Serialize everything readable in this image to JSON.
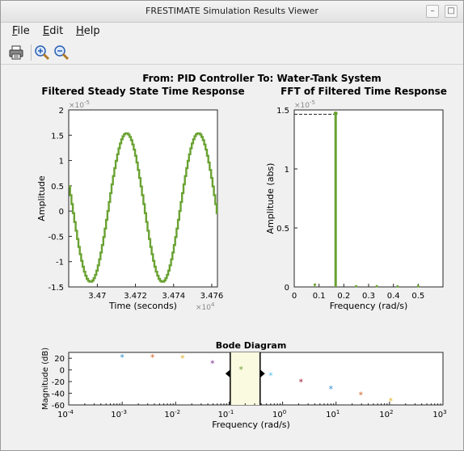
{
  "window": {
    "title": "FRESTIMATE Simulation Results Viewer",
    "btn_min": "–",
    "btn_max": "□",
    "btn_close": "✕"
  },
  "menu": {
    "file": "File",
    "file_key": "F",
    "file_rest": "ile",
    "edit": "Edit",
    "edit_key": "E",
    "edit_rest": "dit",
    "help": "Help",
    "help_key": "H",
    "help_rest": "elp"
  },
  "toolbar": {
    "print_icon": "printer-icon",
    "zoom_in_icon": "zoom-in-icon",
    "zoom_out_icon": "zoom-out-icon"
  },
  "figure": {
    "super_title": "From: PID Controller  To: Water-Tank System"
  },
  "colors": {
    "line_green": "#6aa232",
    "highlight": "#fafae0"
  },
  "chart_data": [
    {
      "type": "line",
      "title": "Filtered Steady State Time Response",
      "xlabel": "Time (seconds)",
      "ylabel": "Amplitude",
      "y_exponent": "×10",
      "y_exponent_power": "-5",
      "x_exponent": "×10",
      "x_exponent_power": "4",
      "xlim": [
        34685,
        34763
      ],
      "ylim": [
        -1.5e-05,
        2e-05
      ],
      "x_ticks": [
        34700,
        34720,
        34740,
        34760
      ],
      "x_tick_labels": [
        "3.47",
        "3.472",
        "3.474",
        "3.476"
      ],
      "y_ticks": [
        -1.5e-05,
        -1e-05,
        -5e-06,
        0,
        5e-06,
        1e-05,
        1.5e-05,
        2e-05
      ],
      "y_tick_labels": [
        "-1.5",
        "-1",
        "-0.5",
        "0",
        "0.5",
        "1",
        "1.5",
        "2"
      ],
      "signal": {
        "amplitude": 1.47e-05,
        "offset": 7e-07,
        "period": 37.7,
        "peak_time": 34715,
        "steps_per_period": 52
      }
    },
    {
      "type": "bar",
      "title": "FFT of Filtered Time Response",
      "xlabel": "Frequency (rad/s)",
      "ylabel": "Amplitude (abs)",
      "y_exponent": "×10",
      "y_exponent_power": "-5",
      "xlim": [
        0,
        0.6
      ],
      "ylim": [
        0,
        1.5e-05
      ],
      "x_ticks": [
        0,
        0.1,
        0.2,
        0.3,
        0.4,
        0.5
      ],
      "x_tick_labels": [
        "0",
        "0.1",
        "0.2",
        "0.3",
        "0.4",
        "0.5"
      ],
      "y_ticks": [
        0,
        5e-06,
        1e-05,
        1.5e-05
      ],
      "y_tick_labels": [
        "0",
        "0.5",
        "1",
        "1.5"
      ],
      "x": [
        0.083,
        0.167,
        0.25,
        0.333,
        0.417,
        0.5
      ],
      "values": [
        2e-07,
        1.47e-05,
        6e-08,
        6e-08,
        4e-08,
        6e-08
      ]
    },
    {
      "type": "scatter",
      "title": "Bode Diagram",
      "xlabel": "Frequency  (rad/s)",
      "ylabel": "Magnitude (dB)",
      "xscale": "log",
      "xlim": [
        0.0001,
        1000
      ],
      "ylim": [
        -60,
        30
      ],
      "x_ticks": [
        0.0001,
        0.001,
        0.01,
        0.1,
        1,
        10,
        100,
        1000
      ],
      "x_tick_bases": [
        "10",
        "10",
        "10",
        "10",
        "10",
        "10",
        "10",
        "10"
      ],
      "x_tick_powers": [
        "-4",
        "-3",
        "-2",
        "-1",
        "0",
        "1",
        "2",
        "3"
      ],
      "y_ticks": [
        -60,
        -40,
        -20,
        0,
        20
      ],
      "y_tick_labels": [
        "-60",
        "-40",
        "-20",
        "0",
        "20"
      ],
      "highlight_range": [
        0.105,
        0.38
      ],
      "points": [
        {
          "x": 0.001,
          "y": 23,
          "color": "#2b8ccc"
        },
        {
          "x": 0.0037,
          "y": 23,
          "color": "#d45e1e"
        },
        {
          "x": 0.0135,
          "y": 22,
          "color": "#e0b020"
        },
        {
          "x": 0.049,
          "y": 13,
          "color": "#7e2f8e"
        },
        {
          "x": 0.167,
          "y": 2,
          "color": "#6aa232"
        },
        {
          "x": 0.6,
          "y": -8,
          "color": "#4dbeee"
        },
        {
          "x": 2.2,
          "y": -19,
          "color": "#a2142f"
        },
        {
          "x": 8,
          "y": -31,
          "color": "#2b8ccc"
        },
        {
          "x": 29,
          "y": -41,
          "color": "#d45e1e"
        },
        {
          "x": 105,
          "y": -52,
          "color": "#e0b020"
        }
      ]
    }
  ]
}
